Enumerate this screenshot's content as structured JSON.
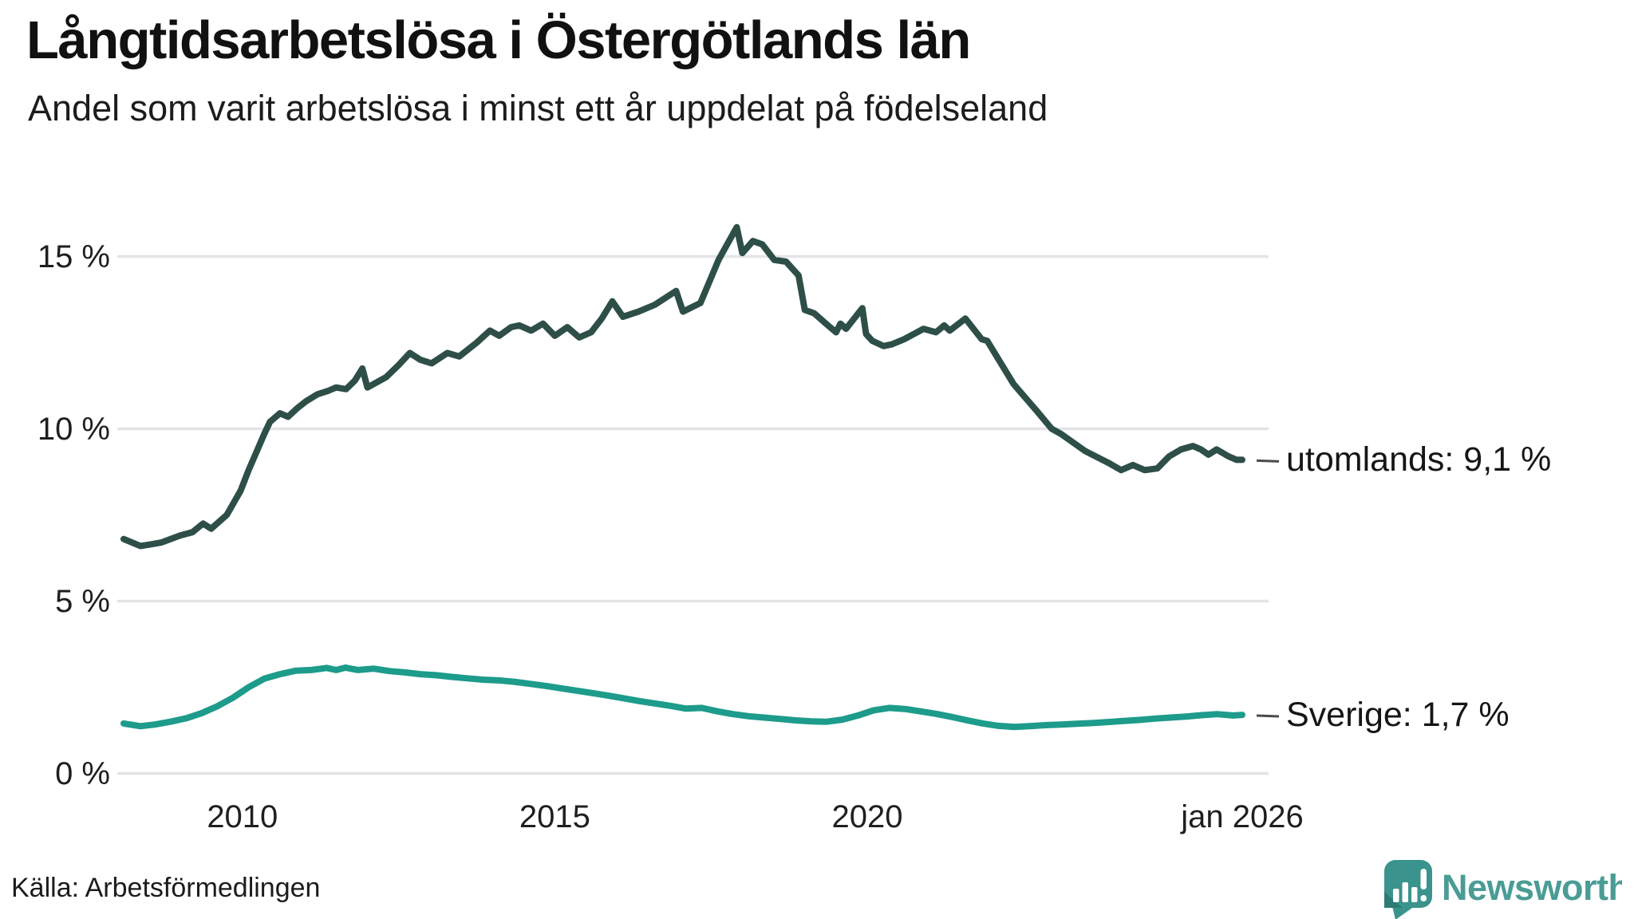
{
  "chart_data": {
    "type": "line",
    "title": "Långtidsarbetslösa i Östergötlands län",
    "subtitle": "Andel som varit arbetslösa i minst ett år uppdelat på födelseland",
    "source": "Källa: Arbetsförmedlingen",
    "unit": "%",
    "grid": "horizontal-only",
    "legend_position": "end-labels-right",
    "background": "#ffffff",
    "xlim": [
      2008.1,
      2026.0
    ],
    "ylim": [
      0,
      16
    ],
    "colors": {
      "utomlands": "#2d4f47",
      "sverige": "#1d9b8b",
      "gridline": "#e4e4e8",
      "text": "#1a1a1a",
      "connector": "#4a4a4a"
    },
    "y_ticks": [
      {
        "value": 0,
        "label": "0 %"
      },
      {
        "value": 5,
        "label": "5 %"
      },
      {
        "value": 10,
        "label": "10 %"
      },
      {
        "value": 15,
        "label": "15 %"
      }
    ],
    "x_ticks": [
      {
        "value": 2010,
        "label": "2010"
      },
      {
        "value": 2015,
        "label": "2015"
      },
      {
        "value": 2020,
        "label": "2020"
      },
      {
        "value": 2026,
        "label": "jan 2026"
      }
    ],
    "series": [
      {
        "name": "utomlands",
        "color": "#2d4f47",
        "end_label": "utomlands: 9,1 %",
        "end_value_display": "9,1 %",
        "end_value": 9.1,
        "points": [
          [
            2008.1,
            6.8
          ],
          [
            2008.37,
            6.6
          ],
          [
            2008.55,
            6.65
          ],
          [
            2008.7,
            6.7
          ],
          [
            2009.0,
            6.9
          ],
          [
            2009.2,
            7.0
          ],
          [
            2009.37,
            7.25
          ],
          [
            2009.5,
            7.1
          ],
          [
            2009.75,
            7.5
          ],
          [
            2009.97,
            8.2
          ],
          [
            2010.1,
            8.8
          ],
          [
            2010.22,
            9.3
          ],
          [
            2010.35,
            9.85
          ],
          [
            2010.44,
            10.2
          ],
          [
            2010.6,
            10.45
          ],
          [
            2010.73,
            10.35
          ],
          [
            2010.88,
            10.6
          ],
          [
            2011.02,
            10.8
          ],
          [
            2011.2,
            11.0
          ],
          [
            2011.37,
            11.1
          ],
          [
            2011.5,
            11.2
          ],
          [
            2011.66,
            11.15
          ],
          [
            2011.8,
            11.4
          ],
          [
            2011.92,
            11.75
          ],
          [
            2012.0,
            11.2
          ],
          [
            2012.15,
            11.35
          ],
          [
            2012.3,
            11.5
          ],
          [
            2012.5,
            11.85
          ],
          [
            2012.68,
            12.2
          ],
          [
            2012.85,
            12.0
          ],
          [
            2013.03,
            11.9
          ],
          [
            2013.28,
            12.2
          ],
          [
            2013.47,
            12.1
          ],
          [
            2013.75,
            12.5
          ],
          [
            2013.96,
            12.85
          ],
          [
            2014.11,
            12.7
          ],
          [
            2014.3,
            12.95
          ],
          [
            2014.43,
            13.0
          ],
          [
            2014.62,
            12.85
          ],
          [
            2014.81,
            13.05
          ],
          [
            2015.0,
            12.7
          ],
          [
            2015.2,
            12.95
          ],
          [
            2015.39,
            12.65
          ],
          [
            2015.58,
            12.8
          ],
          [
            2015.75,
            13.2
          ],
          [
            2015.92,
            13.7
          ],
          [
            2016.09,
            13.25
          ],
          [
            2016.34,
            13.4
          ],
          [
            2016.6,
            13.6
          ],
          [
            2016.94,
            14.0
          ],
          [
            2017.05,
            13.4
          ],
          [
            2017.33,
            13.65
          ],
          [
            2017.62,
            14.9
          ],
          [
            2017.91,
            15.85
          ],
          [
            2018.0,
            15.1
          ],
          [
            2018.17,
            15.45
          ],
          [
            2018.32,
            15.35
          ],
          [
            2018.51,
            14.9
          ],
          [
            2018.7,
            14.85
          ],
          [
            2018.9,
            14.45
          ],
          [
            2019.0,
            13.45
          ],
          [
            2019.15,
            13.35
          ],
          [
            2019.37,
            13.0
          ],
          [
            2019.5,
            12.8
          ],
          [
            2019.57,
            13.05
          ],
          [
            2019.66,
            12.9
          ],
          [
            2019.92,
            13.5
          ],
          [
            2019.98,
            12.75
          ],
          [
            2020.08,
            12.55
          ],
          [
            2020.26,
            12.4
          ],
          [
            2020.39,
            12.45
          ],
          [
            2020.59,
            12.6
          ],
          [
            2020.9,
            12.9
          ],
          [
            2021.1,
            12.8
          ],
          [
            2021.23,
            13.0
          ],
          [
            2021.32,
            12.85
          ],
          [
            2021.57,
            13.2
          ],
          [
            2021.83,
            12.6
          ],
          [
            2021.92,
            12.55
          ],
          [
            2022.34,
            11.3
          ],
          [
            2022.72,
            10.5
          ],
          [
            2022.95,
            10.0
          ],
          [
            2023.1,
            9.85
          ],
          [
            2023.49,
            9.35
          ],
          [
            2023.87,
            9.0
          ],
          [
            2024.06,
            8.8
          ],
          [
            2024.25,
            8.95
          ],
          [
            2024.44,
            8.8
          ],
          [
            2024.64,
            8.85
          ],
          [
            2024.83,
            9.2
          ],
          [
            2025.02,
            9.4
          ],
          [
            2025.21,
            9.5
          ],
          [
            2025.34,
            9.4
          ],
          [
            2025.46,
            9.25
          ],
          [
            2025.59,
            9.4
          ],
          [
            2025.78,
            9.2
          ],
          [
            2025.91,
            9.1
          ],
          [
            2026.0,
            9.1
          ]
        ]
      },
      {
        "name": "Sverige",
        "color": "#1d9b8b",
        "end_label": "Sverige: 1,7 %",
        "end_value_display": "1,7 %",
        "end_value": 1.7,
        "points": [
          [
            2008.1,
            1.45
          ],
          [
            2008.37,
            1.37
          ],
          [
            2008.6,
            1.42
          ],
          [
            2008.85,
            1.5
          ],
          [
            2009.1,
            1.6
          ],
          [
            2009.35,
            1.75
          ],
          [
            2009.6,
            1.95
          ],
          [
            2009.85,
            2.2
          ],
          [
            2010.1,
            2.5
          ],
          [
            2010.35,
            2.75
          ],
          [
            2010.6,
            2.88
          ],
          [
            2010.85,
            2.98
          ],
          [
            2011.1,
            3.0
          ],
          [
            2011.35,
            3.06
          ],
          [
            2011.5,
            3.0
          ],
          [
            2011.65,
            3.07
          ],
          [
            2011.85,
            3.0
          ],
          [
            2012.1,
            3.04
          ],
          [
            2012.35,
            2.97
          ],
          [
            2012.6,
            2.93
          ],
          [
            2012.85,
            2.88
          ],
          [
            2013.1,
            2.85
          ],
          [
            2013.35,
            2.8
          ],
          [
            2013.6,
            2.76
          ],
          [
            2013.85,
            2.72
          ],
          [
            2014.1,
            2.7
          ],
          [
            2014.35,
            2.66
          ],
          [
            2014.6,
            2.6
          ],
          [
            2014.85,
            2.54
          ],
          [
            2015.1,
            2.47
          ],
          [
            2015.35,
            2.4
          ],
          [
            2015.6,
            2.33
          ],
          [
            2015.85,
            2.26
          ],
          [
            2016.1,
            2.18
          ],
          [
            2016.35,
            2.1
          ],
          [
            2016.6,
            2.03
          ],
          [
            2016.85,
            1.96
          ],
          [
            2017.1,
            1.88
          ],
          [
            2017.35,
            1.9
          ],
          [
            2017.6,
            1.8
          ],
          [
            2017.85,
            1.72
          ],
          [
            2018.1,
            1.66
          ],
          [
            2018.35,
            1.62
          ],
          [
            2018.6,
            1.58
          ],
          [
            2018.85,
            1.54
          ],
          [
            2019.1,
            1.51
          ],
          [
            2019.35,
            1.5
          ],
          [
            2019.6,
            1.56
          ],
          [
            2019.85,
            1.68
          ],
          [
            2020.1,
            1.83
          ],
          [
            2020.35,
            1.9
          ],
          [
            2020.6,
            1.87
          ],
          [
            2020.85,
            1.8
          ],
          [
            2021.1,
            1.73
          ],
          [
            2021.35,
            1.64
          ],
          [
            2021.6,
            1.54
          ],
          [
            2021.85,
            1.45
          ],
          [
            2022.1,
            1.38
          ],
          [
            2022.35,
            1.35
          ],
          [
            2022.6,
            1.37
          ],
          [
            2022.85,
            1.4
          ],
          [
            2023.1,
            1.42
          ],
          [
            2023.35,
            1.44
          ],
          [
            2023.6,
            1.46
          ],
          [
            2023.85,
            1.49
          ],
          [
            2024.1,
            1.52
          ],
          [
            2024.35,
            1.55
          ],
          [
            2024.6,
            1.59
          ],
          [
            2024.85,
            1.62
          ],
          [
            2025.1,
            1.65
          ],
          [
            2025.35,
            1.69
          ],
          [
            2025.6,
            1.72
          ],
          [
            2025.85,
            1.68
          ],
          [
            2026.0,
            1.7
          ]
        ]
      }
    ]
  },
  "branding": {
    "wordmark": "Newsworthy",
    "color": "#4a9c95",
    "icon": "bar-chart-speech-bubble"
  }
}
